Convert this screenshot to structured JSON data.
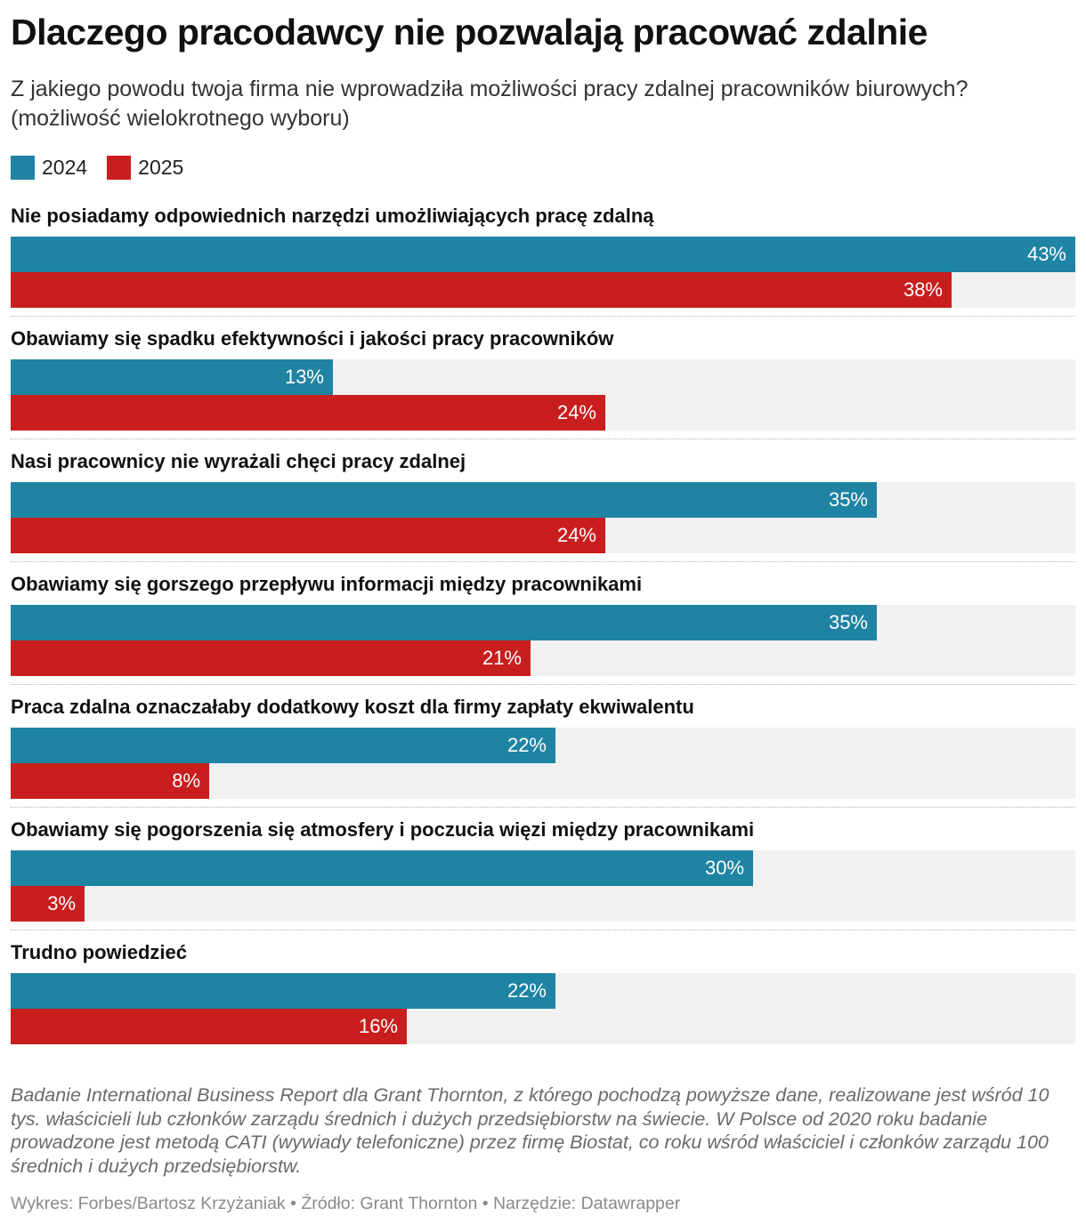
{
  "title": "Dlaczego pracodawcy nie pozwalają pracować zdalnie",
  "subtitle": "Z jakiego powodu twoja firma nie wprowadziła możliwości pracy zdalnej pracowników biurowych? (możliwość wielokrotnego wyboru)",
  "colors": {
    "2024": "#1f83a3",
    "2025": "#c81e1e"
  },
  "chart_data": {
    "type": "bar",
    "orientation": "horizontal",
    "unit": "%",
    "xlim": [
      0,
      43
    ],
    "grid": false,
    "legend_placement": "top-left",
    "categories": [
      "Nie posiadamy odpowiednich narzędzi umożliwiających pracę zdalną",
      "Obawiamy się spadku efektywności i jakości pracy pracowników",
      "Nasi pracownicy nie wyrażali chęci pracy zdalnej",
      "Obawiamy się gorszego przepływu informacji między pracownikami",
      "Praca zdalna oznaczałaby dodatkowy koszt dla firmy zapłaty ekwiwalentu",
      "Obawiamy się pogorszenia się atmosfery i poczucia więzi między pracownikami",
      "Trudno powiedzieć"
    ],
    "series": [
      {
        "name": "2024",
        "color": "#1f83a3",
        "values": [
          43,
          13,
          35,
          35,
          22,
          30,
          22
        ]
      },
      {
        "name": "2025",
        "color": "#c81e1e",
        "values": [
          38,
          24,
          24,
          21,
          8,
          3,
          16
        ]
      }
    ]
  },
  "note": "Badanie International Business Report dla Grant Thornton, z którego pochodzą powyższe dane, realizowane jest wśród 10 tys. właścicieli lub członków zarządu średnich i dużych przedsiębiorstw na świecie. W Polsce od 2020 roku badanie prowadzone jest metodą CATI (wywiady telefoniczne) przez firmę Biostat, co roku wśród właściciel i członków zarządu 100 średnich i dużych przedsiębiorstw.",
  "credit": "Wykres: Forbes/Bartosz Krzyżaniak • Źródło: Grant Thornton • Narzędzie: Datawrapper"
}
